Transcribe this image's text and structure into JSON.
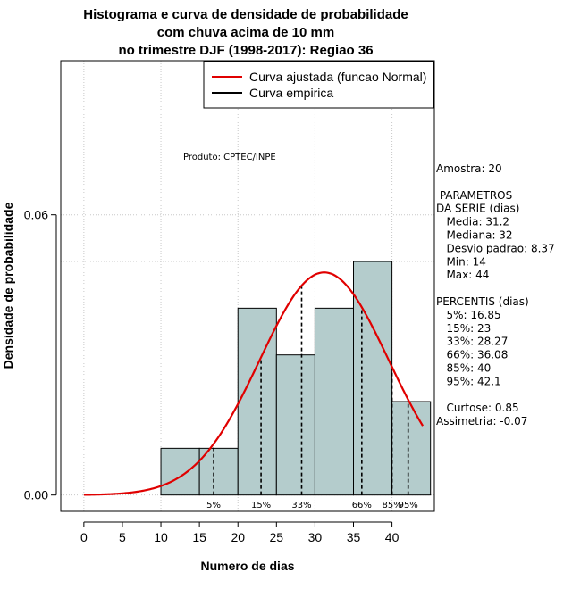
{
  "chart_data": {
    "type": "bar",
    "title_lines": [
      "Histograma e curva de densidade de probabilidade",
      "com chuva acima de 10 mm",
      "no trimestre DJF (1998-2017): Regiao 36"
    ],
    "xlabel": "Numero de dias",
    "ylabel": "Densidade de probabilidade",
    "xlim": [
      -3,
      45.5
    ],
    "ylim": [
      -0.0035,
      0.093
    ],
    "x_ticks": [
      0,
      5,
      10,
      15,
      20,
      25,
      30,
      35,
      40
    ],
    "y_ticks": [
      0.0,
      0.06
    ],
    "y_tick_labels": [
      "0.00",
      "0.06"
    ],
    "grid": true,
    "grid_x": [
      0,
      10,
      20,
      30,
      40
    ],
    "grid_y": [
      0.0,
      0.06
    ],
    "bins": [
      {
        "from": 10,
        "to": 15,
        "density": 0.01
      },
      {
        "from": 15,
        "to": 20,
        "density": 0.01
      },
      {
        "from": 20,
        "to": 25,
        "density": 0.04
      },
      {
        "from": 25,
        "to": 30,
        "density": 0.03
      },
      {
        "from": 30,
        "to": 35,
        "density": 0.04
      },
      {
        "from": 35,
        "to": 40,
        "density": 0.05
      },
      {
        "from": 40,
        "to": 45,
        "density": 0.02
      }
    ],
    "reference_line_y": 0.05,
    "bar_color": "#b4cccc",
    "curve": {
      "name": "Curva ajustada (funcao Normal)",
      "distribution": "normal",
      "mean": 31.2,
      "sd": 8.37,
      "x_from": 0,
      "x_to": 44,
      "color": "#e00000"
    },
    "percentiles": [
      {
        "label": "5%",
        "value": 16.85
      },
      {
        "label": "15%",
        "value": 23
      },
      {
        "label": "33%",
        "value": 28.27
      },
      {
        "label": "66%",
        "value": 36.08
      },
      {
        "label": "85%",
        "value": 40
      },
      {
        "label": "95%",
        "value": 42.1
      }
    ],
    "legend": {
      "position": "top-right",
      "entries": [
        {
          "label": "Curva ajustada (funcao Normal)",
          "color": "#e00000"
        },
        {
          "label": "Curva empirica",
          "color": "#000000"
        }
      ]
    },
    "annotation": "Produto: CPTEC/INPE"
  },
  "side_panel": {
    "lines": [
      "Amostra: 20",
      "",
      " PARAMETROS",
      "DA SERIE (dias)",
      "   Media: 31.2",
      "   Mediana: 32",
      "   Desvio padrao: 8.37",
      "   Min: 14",
      "   Max: 44",
      "",
      "PERCENTIS (dias)",
      "   5%: 16.85",
      "   15%: 23",
      "   33%: 28.27",
      "   66%: 36.08",
      "   85%: 40",
      "   95%: 42.1",
      "",
      "   Curtose: 0.85",
      "Assimetria: -0.07"
    ]
  }
}
